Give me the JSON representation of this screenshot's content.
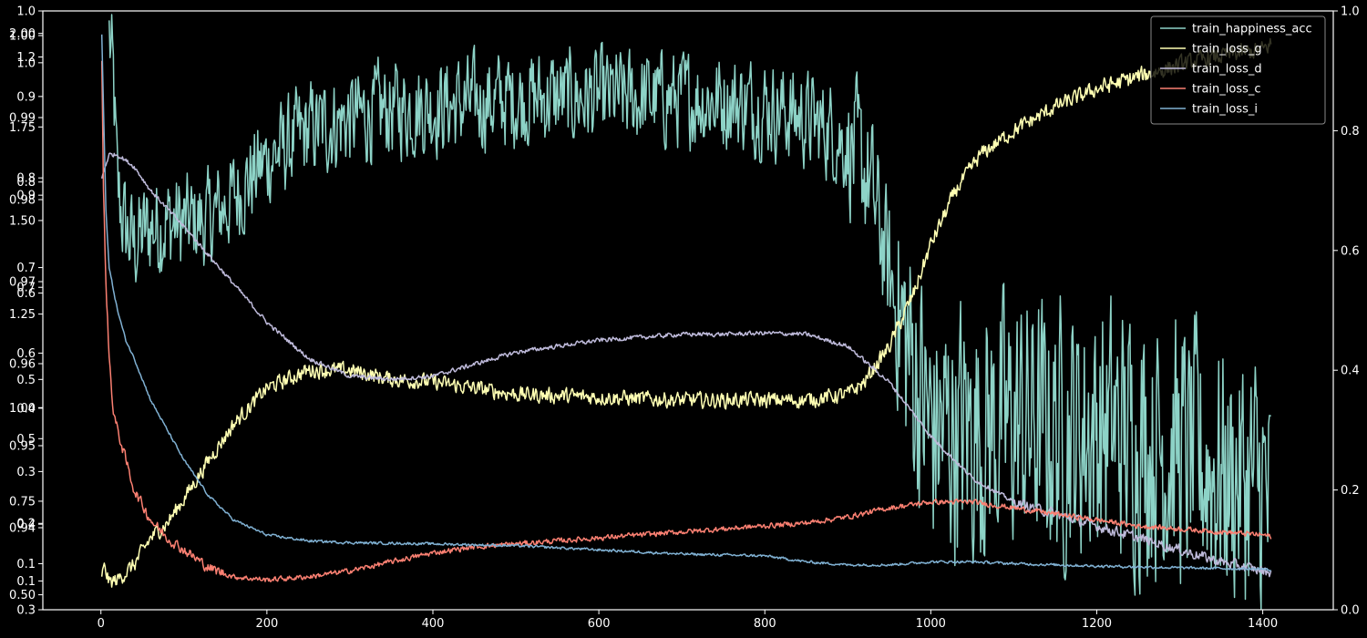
{
  "chart_data": {
    "type": "line",
    "title": "",
    "xlabel": "",
    "ylabel": "",
    "xlim": [
      -70,
      1485
    ],
    "grid": false,
    "legend_position": "top-right",
    "colors": {
      "background": "#000000",
      "axes": "#ffffff",
      "text": "#ffffff",
      "legend_bg": "#000000",
      "legend_border": "#888888"
    },
    "x_ticks": [
      0,
      200,
      400,
      600,
      800,
      1000,
      1200,
      1400
    ],
    "right_axis": {
      "ylim": [
        0.0,
        1.0
      ],
      "ticks": [
        "0.0",
        "0.2",
        "0.4",
        "0.6",
        "0.8",
        "1.0"
      ]
    },
    "left_axes": [
      {
        "series": "train_happiness_acc",
        "ylim": [
          0.3,
          1.0
        ],
        "ticks": [
          "0.3",
          "0.4",
          "0.5",
          "0.6",
          "0.7",
          "0.8",
          "0.9",
          "1.0"
        ]
      },
      {
        "series": "train_loss_g",
        "ylim": [
          0.0,
          1.3
        ],
        "ticks": [
          "0.1",
          "0.3",
          "0.5",
          "0.7",
          "0.9",
          "1.2"
        ]
      },
      {
        "series": "train_loss_d",
        "ylim": [
          0.93,
          1.003
        ],
        "ticks": [
          "0.94",
          "0.95",
          "0.96",
          "0.97",
          "0.98",
          "0.99",
          "1.00"
        ]
      },
      {
        "series": "train_loss_c",
        "ylim": [
          0.46,
          2.06
        ],
        "ticks": [
          "0.50",
          "0.75",
          "1.00",
          "1.25",
          "1.50",
          "1.75",
          "2.00"
        ]
      },
      {
        "series": "train_loss_i",
        "ylim": [
          0.05,
          1.09
        ],
        "ticks": [
          "0.1",
          "0.2",
          "0.4",
          "0.6",
          "0.8",
          "1.0"
        ]
      }
    ],
    "series": [
      {
        "name": "train_happiness_acc",
        "color": "#8dd3c7",
        "noise": 0.0,
        "points": [
          [
            10,
            0.96
          ],
          [
            15,
            0.88
          ],
          [
            20,
            0.7
          ],
          [
            30,
            0.63
          ],
          [
            40,
            0.61
          ],
          [
            60,
            0.64
          ],
          [
            80,
            0.645
          ],
          [
            100,
            0.645
          ],
          [
            130,
            0.65
          ],
          [
            150,
            0.675
          ],
          [
            200,
            0.75
          ],
          [
            250,
            0.8
          ],
          [
            300,
            0.82
          ],
          [
            350,
            0.835
          ],
          [
            400,
            0.84
          ],
          [
            450,
            0.845
          ],
          [
            500,
            0.853
          ],
          [
            550,
            0.855
          ],
          [
            600,
            0.855
          ],
          [
            650,
            0.855
          ],
          [
            700,
            0.853
          ],
          [
            750,
            0.85
          ],
          [
            800,
            0.84
          ],
          [
            850,
            0.82
          ],
          [
            880,
            0.8
          ],
          [
            910,
            0.76
          ],
          [
            925,
            0.72
          ],
          [
            940,
            0.63
          ],
          [
            950,
            0.56
          ],
          [
            960,
            0.49
          ],
          [
            980,
            0.4
          ],
          [
            1000,
            0.3
          ],
          [
            1050,
            0.3
          ],
          [
            1100,
            0.31
          ],
          [
            1150,
            0.3
          ],
          [
            1200,
            0.3
          ],
          [
            1250,
            0.29
          ],
          [
            1300,
            0.265
          ],
          [
            1350,
            0.23
          ],
          [
            1400,
            0.2
          ],
          [
            1410,
            0.16
          ]
        ]
      },
      {
        "name": "train_loss_g",
        "color": "#ffffb3",
        "noise": 0.0,
        "points": [
          [
            1,
            0.06
          ],
          [
            5,
            0.07
          ],
          [
            10,
            0.045
          ],
          [
            20,
            0.05
          ],
          [
            40,
            0.075
          ],
          [
            60,
            0.12
          ],
          [
            80,
            0.145
          ],
          [
            100,
            0.185
          ],
          [
            130,
            0.25
          ],
          [
            160,
            0.31
          ],
          [
            200,
            0.37
          ],
          [
            250,
            0.4
          ],
          [
            300,
            0.4
          ],
          [
            350,
            0.385
          ],
          [
            400,
            0.38
          ],
          [
            450,
            0.37
          ],
          [
            500,
            0.36
          ],
          [
            600,
            0.355
          ],
          [
            700,
            0.35
          ],
          [
            800,
            0.35
          ],
          [
            850,
            0.35
          ],
          [
            900,
            0.36
          ],
          [
            920,
            0.38
          ],
          [
            950,
            0.44
          ],
          [
            980,
            0.53
          ],
          [
            1000,
            0.61
          ],
          [
            1030,
            0.7
          ],
          [
            1060,
            0.76
          ],
          [
            1100,
            0.8
          ],
          [
            1150,
            0.84
          ],
          [
            1200,
            0.87
          ],
          [
            1250,
            0.89
          ],
          [
            1300,
            0.91
          ],
          [
            1350,
            0.925
          ],
          [
            1400,
            0.935
          ],
          [
            1410,
            0.945
          ]
        ]
      },
      {
        "name": "train_loss_d",
        "color": "#bebada",
        "noise": 0.0,
        "points": [
          [
            1,
            0.72
          ],
          [
            5,
            0.74
          ],
          [
            10,
            0.76
          ],
          [
            20,
            0.76
          ],
          [
            40,
            0.74
          ],
          [
            60,
            0.7
          ],
          [
            100,
            0.64
          ],
          [
            150,
            0.56
          ],
          [
            200,
            0.48
          ],
          [
            250,
            0.42
          ],
          [
            300,
            0.39
          ],
          [
            350,
            0.385
          ],
          [
            400,
            0.39
          ],
          [
            450,
            0.41
          ],
          [
            500,
            0.43
          ],
          [
            550,
            0.44
          ],
          [
            600,
            0.45
          ],
          [
            650,
            0.455
          ],
          [
            700,
            0.46
          ],
          [
            750,
            0.46
          ],
          [
            800,
            0.462
          ],
          [
            850,
            0.46
          ],
          [
            900,
            0.44
          ],
          [
            950,
            0.38
          ],
          [
            1000,
            0.29
          ],
          [
            1050,
            0.22
          ],
          [
            1100,
            0.18
          ],
          [
            1150,
            0.16
          ],
          [
            1200,
            0.14
          ],
          [
            1250,
            0.12
          ],
          [
            1300,
            0.1
          ],
          [
            1350,
            0.08
          ],
          [
            1400,
            0.065
          ],
          [
            1410,
            0.063
          ]
        ]
      },
      {
        "name": "train_loss_c",
        "color": "#fb8072",
        "noise": 0.0,
        "points": [
          [
            1,
            0.92
          ],
          [
            3,
            0.7
          ],
          [
            6,
            0.55
          ],
          [
            10,
            0.42
          ],
          [
            15,
            0.33
          ],
          [
            20,
            0.3
          ],
          [
            30,
            0.25
          ],
          [
            40,
            0.2
          ],
          [
            60,
            0.15
          ],
          [
            80,
            0.12
          ],
          [
            100,
            0.1
          ],
          [
            130,
            0.07
          ],
          [
            160,
            0.055
          ],
          [
            200,
            0.05
          ],
          [
            250,
            0.055
          ],
          [
            300,
            0.065
          ],
          [
            350,
            0.08
          ],
          [
            400,
            0.095
          ],
          [
            450,
            0.105
          ],
          [
            500,
            0.11
          ],
          [
            550,
            0.115
          ],
          [
            600,
            0.12
          ],
          [
            650,
            0.125
          ],
          [
            700,
            0.13
          ],
          [
            750,
            0.135
          ],
          [
            800,
            0.14
          ],
          [
            850,
            0.145
          ],
          [
            900,
            0.155
          ],
          [
            950,
            0.17
          ],
          [
            1000,
            0.18
          ],
          [
            1050,
            0.18
          ],
          [
            1100,
            0.17
          ],
          [
            1150,
            0.16
          ],
          [
            1200,
            0.15
          ],
          [
            1250,
            0.14
          ],
          [
            1300,
            0.135
          ],
          [
            1350,
            0.13
          ],
          [
            1400,
            0.125
          ],
          [
            1410,
            0.122
          ]
        ]
      },
      {
        "name": "train_loss_i",
        "color": "#80b1d3",
        "noise": 0.0,
        "points": [
          [
            1,
            0.96
          ],
          [
            3,
            0.84
          ],
          [
            6,
            0.67
          ],
          [
            10,
            0.57
          ],
          [
            20,
            0.5
          ],
          [
            30,
            0.45
          ],
          [
            40,
            0.42
          ],
          [
            60,
            0.35
          ],
          [
            80,
            0.3
          ],
          [
            100,
            0.25
          ],
          [
            130,
            0.19
          ],
          [
            160,
            0.15
          ],
          [
            200,
            0.125
          ],
          [
            250,
            0.115
          ],
          [
            300,
            0.112
          ],
          [
            400,
            0.11
          ],
          [
            500,
            0.107
          ],
          [
            600,
            0.1
          ],
          [
            700,
            0.093
          ],
          [
            800,
            0.09
          ],
          [
            850,
            0.08
          ],
          [
            900,
            0.075
          ],
          [
            950,
            0.075
          ],
          [
            1000,
            0.08
          ],
          [
            1050,
            0.08
          ],
          [
            1100,
            0.077
          ],
          [
            1200,
            0.073
          ],
          [
            1300,
            0.07
          ],
          [
            1400,
            0.068
          ],
          [
            1410,
            0.066
          ]
        ]
      }
    ]
  }
}
